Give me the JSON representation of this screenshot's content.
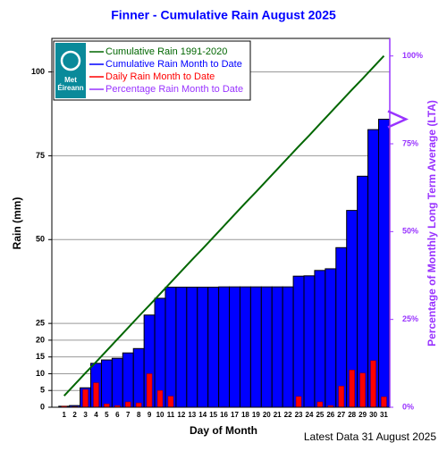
{
  "chart_data": {
    "type": "bar",
    "title": "Finner - Cumulative Rain August   2025",
    "y_label": "Rain (mm)",
    "x_label": "Day of Month",
    "y2_label": "Percentage  of Monthly Long Term Average (LTA)",
    "footer": "Latest Data 31 August 2025",
    "logo_text": [
      "Met",
      "Éireann"
    ],
    "categories": [
      "1",
      "2",
      "3",
      "4",
      "5",
      "6",
      "7",
      "8",
      "9",
      "10",
      "11",
      "12",
      "13",
      "14",
      "15",
      "16",
      "17",
      "18",
      "19",
      "20",
      "21",
      "22",
      "23",
      "24",
      "25",
      "26",
      "27",
      "28",
      "29",
      "30",
      "31"
    ],
    "series": [
      {
        "name": "Cumulative Rain 1991-2020",
        "color": "#006600",
        "kind": "line",
        "values": [
          3.4,
          6.8,
          10.2,
          13.5,
          16.9,
          20.3,
          23.7,
          27.1,
          30.4,
          33.8,
          37.2,
          40.6,
          44.0,
          47.3,
          50.7,
          54.1,
          57.5,
          60.9,
          64.2,
          67.6,
          71.0,
          74.4,
          77.8,
          81.1,
          84.5,
          87.9,
          91.3,
          94.7,
          98.0,
          101.4,
          104.8
        ]
      },
      {
        "name": "Cumulative Rain Month to Date",
        "color": "#0000ff",
        "kind": "bar",
        "values": [
          0.3,
          0.5,
          5.8,
          13.1,
          14.1,
          14.6,
          16.2,
          17.5,
          27.5,
          32.5,
          35.8,
          35.8,
          35.8,
          35.8,
          35.8,
          35.9,
          35.9,
          35.9,
          35.9,
          35.9,
          35.9,
          35.9,
          39.1,
          39.2,
          40.8,
          41.3,
          47.6,
          58.7,
          68.9,
          82.8,
          85.9
        ]
      },
      {
        "name": "Daily Rain Month to Date",
        "color": "#ff0000",
        "kind": "bar",
        "values": [
          0.3,
          0.2,
          5.3,
          7.3,
          1.0,
          0.5,
          1.6,
          1.3,
          10.0,
          5.0,
          3.3,
          0,
          0,
          0,
          0,
          0.1,
          0,
          0,
          0,
          0,
          0,
          0,
          3.2,
          0.1,
          1.6,
          0.5,
          6.3,
          11.1,
          10.2,
          13.9,
          3.1
        ]
      },
      {
        "name": "Percentage Rain Month to Date",
        "color": "#9933ff",
        "kind": "marker",
        "axis": "y2",
        "values": [
          null,
          null,
          null,
          null,
          null,
          null,
          null,
          null,
          null,
          null,
          null,
          null,
          null,
          null,
          null,
          null,
          null,
          null,
          null,
          null,
          null,
          null,
          null,
          null,
          null,
          null,
          null,
          null,
          null,
          null,
          82
        ]
      }
    ],
    "ylim": [
      0,
      110
    ],
    "yticks": [
      0,
      5,
      10,
      15,
      20,
      25,
      50,
      75,
      100
    ],
    "y2lim": [
      0,
      105
    ],
    "y2ticks": [
      {
        "value": 0,
        "label": "0%"
      },
      {
        "value": 25,
        "label": "25%"
      },
      {
        "value": 50,
        "label": "50%"
      },
      {
        "value": 75,
        "label": "75%"
      },
      {
        "value": 100,
        "label": "100%"
      }
    ],
    "grid": true,
    "legend": "upper left"
  }
}
